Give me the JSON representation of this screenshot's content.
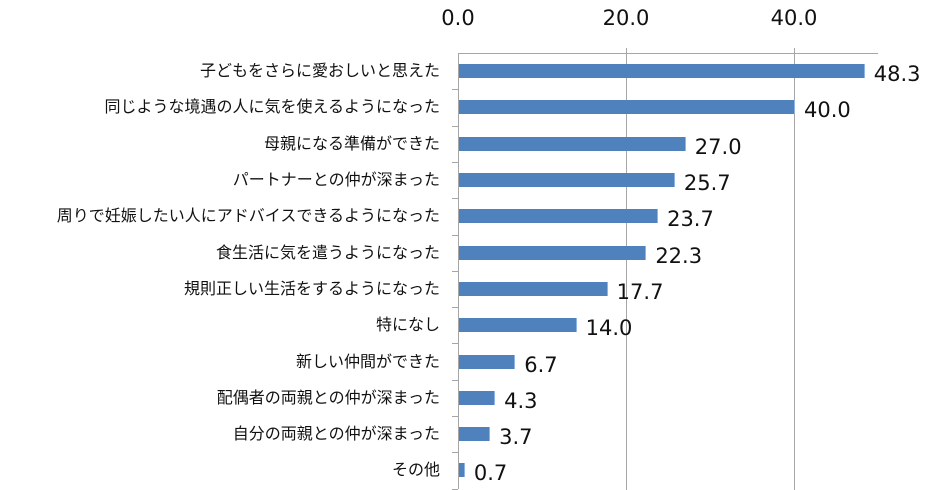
{
  "chart_data": {
    "type": "bar",
    "orientation": "horizontal",
    "title": "",
    "xlabel": "",
    "ylabel": "",
    "xlim": [
      0,
      50
    ],
    "x_ticks": [
      "0.0",
      "20.0",
      "40.0"
    ],
    "x_axis_position": "top",
    "grid": true,
    "legend": null,
    "bar_color": "#4f81bd",
    "categories": [
      "子どもをさらに愛おしいと思えた",
      "同じような境遇の人に気を使えるようになった",
      "母親になる準備ができた",
      "パートナーとの仲が深まった",
      "周りで妊娠したい人にアドバイスできるようになった",
      "食生活に気を遣うようになった",
      "規則正しい生活をするようになった",
      "特になし",
      "新しい仲間ができた",
      "配偶者の両親との仲が深まった",
      "自分の両親との仲が深まった",
      "その他"
    ],
    "values": [
      48.3,
      40.0,
      27.0,
      25.7,
      23.7,
      22.3,
      17.7,
      14.0,
      6.7,
      4.3,
      3.7,
      0.7
    ],
    "value_labels": [
      "48.3",
      "40.0",
      "27.0",
      "25.7",
      "23.7",
      "22.3",
      "17.7",
      "14.0",
      "6.7",
      "4.3",
      "3.7",
      "0.7"
    ]
  }
}
